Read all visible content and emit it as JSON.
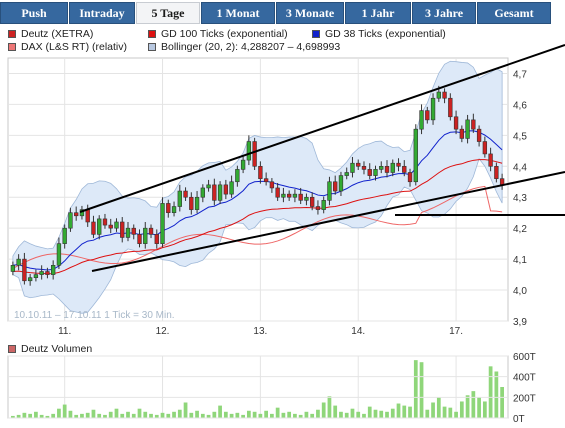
{
  "tabs": [
    {
      "label": "Push",
      "active": false
    },
    {
      "label": "Intraday",
      "active": false
    },
    {
      "label": "5 Tage",
      "active": true
    },
    {
      "label": "1 Monat",
      "active": false
    },
    {
      "label": "3 Monate",
      "active": false
    },
    {
      "label": "1 Jahr",
      "active": false
    },
    {
      "label": "3 Jahre",
      "active": false
    },
    {
      "label": "Gesamt",
      "active": false
    }
  ],
  "legend": [
    {
      "label": "Deutz (XETRA)",
      "color": "#cc2222"
    },
    {
      "label": "GD 100 Ticks (exponential)",
      "color": "#dd1111"
    },
    {
      "label": "GD 38 Ticks (exponential)",
      "color": "#1122cc"
    },
    {
      "label": "DAX (L&S RT) (relativ)",
      "color": "#ee7777"
    },
    {
      "label": "Bollinger (20, 2): 4,288207 – 4,698993",
      "color": "#b8c8e0"
    }
  ],
  "watermark": "10.10.11 – 17.10.11   1 Tick = 30 Min.",
  "volume_title": "Deutz Volumen",
  "chart_data": {
    "type": "candlestick",
    "instrument": "Deutz (XETRA)",
    "period": "10.10.11 – 17.10.11",
    "interval": "1 Tick = 30 Min.",
    "y_ticks": [
      "4,7",
      "4,6",
      "4,5",
      "4,4",
      "4,3",
      "4,2",
      "4,1",
      "4,0",
      "3,9"
    ],
    "ylim": [
      3.9,
      4.75
    ],
    "x_tick_labels": [
      "11.",
      "12.",
      "13.",
      "14.",
      "17."
    ],
    "bollinger": {
      "period": 20,
      "std": 2,
      "lower": 4.288207,
      "upper": 4.698993
    },
    "closes": [
      4.08,
      4.1,
      4.03,
      4.04,
      4.05,
      4.06,
      4.05,
      4.08,
      4.15,
      4.2,
      4.25,
      4.24,
      4.26,
      4.22,
      4.18,
      4.23,
      4.21,
      4.2,
      4.22,
      4.17,
      4.2,
      4.18,
      4.15,
      4.2,
      4.18,
      4.15,
      4.28,
      4.25,
      4.27,
      4.32,
      4.3,
      4.26,
      4.3,
      4.33,
      4.34,
      4.29,
      4.34,
      4.31,
      4.35,
      4.39,
      4.42,
      4.48,
      4.4,
      4.36,
      4.35,
      4.33,
      4.3,
      4.31,
      4.3,
      4.31,
      4.29,
      4.3,
      4.27,
      4.26,
      4.29,
      4.35,
      4.32,
      4.37,
      4.38,
      4.41,
      4.4,
      4.39,
      4.37,
      4.39,
      4.4,
      4.38,
      4.41,
      4.4,
      4.38,
      4.35,
      4.52,
      4.58,
      4.55,
      4.62,
      4.64,
      4.62,
      4.56,
      4.52,
      4.49,
      4.55,
      4.52,
      4.48,
      4.44,
      4.4,
      4.36,
      4.34
    ],
    "volume_ticks": [
      "600T",
      "400T",
      "200T",
      "0T"
    ],
    "volume_max": 600000,
    "volumes_k": [
      20,
      30,
      50,
      40,
      60,
      30,
      20,
      40,
      90,
      130,
      70,
      30,
      40,
      50,
      80,
      40,
      30,
      60,
      90,
      40,
      60,
      40,
      90,
      60,
      40,
      30,
      50,
      40,
      60,
      80,
      150,
      50,
      70,
      40,
      30,
      60,
      120,
      60,
      40,
      50,
      30,
      70,
      60,
      40,
      70,
      40,
      100,
      50,
      60,
      40,
      30,
      60,
      40,
      80,
      150,
      210,
      120,
      60,
      50,
      90,
      60,
      40,
      110,
      80,
      70,
      60,
      90,
      140,
      120,
      110,
      560,
      540,
      80,
      150,
      200,
      110,
      100,
      60,
      160,
      220,
      260,
      200,
      160,
      500,
      450,
      300
    ],
    "volume_color": "#8fd67a"
  }
}
